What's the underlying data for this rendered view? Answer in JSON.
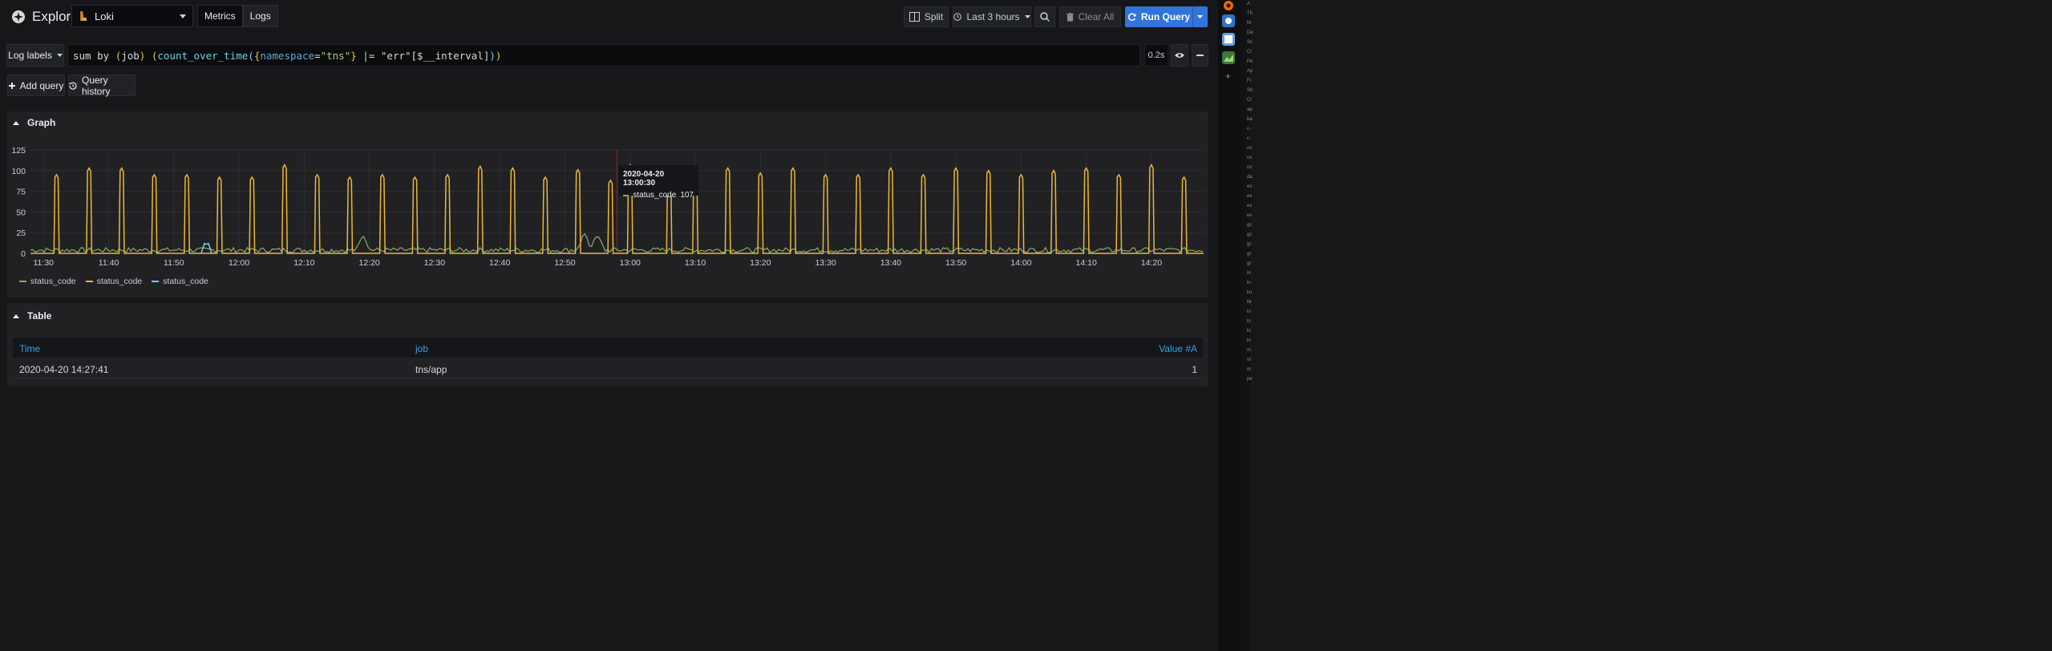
{
  "header": {
    "title": "Explore",
    "datasource": "Loki",
    "modes": [
      "Metrics",
      "Logs"
    ],
    "split_label": "Split",
    "time_range": "Last 3 hours",
    "clear_all_label": "Clear All",
    "run_query_label": "Run Query"
  },
  "query": {
    "log_labels_label": "Log labels",
    "expression_parts": [
      "sum by ",
      "(",
      "job",
      ") ",
      "(",
      "count_over_time",
      "(",
      "{",
      "namespace",
      "=",
      "\"tns\"",
      "}",
      " |= ",
      "\"err\"",
      "[$__interval]",
      ")",
      ")"
    ],
    "duration": "0.2s"
  },
  "actions": {
    "add_query_label": "Add query",
    "query_history_label": "Query history"
  },
  "graph": {
    "title": "Graph",
    "tooltip_time": "2020-04-20 13:00:30",
    "tooltip_series": "status_code",
    "tooltip_value": "107",
    "legend": [
      {
        "name": "status_code",
        "color": "#7eb26d"
      },
      {
        "name": "status_code",
        "color": "#eab839"
      },
      {
        "name": "status_code",
        "color": "#6ed0e0"
      }
    ]
  },
  "chart_data": {
    "type": "line",
    "title": "",
    "xlabel": "",
    "ylabel": "",
    "ylim": [
      0,
      125
    ],
    "yticks": [
      0,
      25,
      50,
      75,
      100,
      125
    ],
    "xticks": [
      "11:30",
      "11:40",
      "11:50",
      "12:00",
      "12:10",
      "12:20",
      "12:30",
      "12:40",
      "12:50",
      "13:00",
      "13:10",
      "13:20",
      "13:30",
      "13:40",
      "13:50",
      "14:00",
      "14:10",
      "14:20"
    ],
    "x_range": [
      "11:28",
      "14:28"
    ],
    "grid": true,
    "legend_position": "bottom-left",
    "series": [
      {
        "name": "status_code",
        "color": "#eab839",
        "peaks": [
          {
            "t": "11:32",
            "v": 95
          },
          {
            "t": "11:37",
            "v": 103
          },
          {
            "t": "11:42",
            "v": 103
          },
          {
            "t": "11:47",
            "v": 95
          },
          {
            "t": "11:52",
            "v": 95
          },
          {
            "t": "11:57",
            "v": 92
          },
          {
            "t": "12:02",
            "v": 92
          },
          {
            "t": "12:07",
            "v": 107
          },
          {
            "t": "12:12",
            "v": 95
          },
          {
            "t": "12:17",
            "v": 92
          },
          {
            "t": "12:22",
            "v": 95
          },
          {
            "t": "12:27",
            "v": 92
          },
          {
            "t": "12:32",
            "v": 95
          },
          {
            "t": "12:37",
            "v": 105
          },
          {
            "t": "12:42",
            "v": 103
          },
          {
            "t": "12:47",
            "v": 92
          },
          {
            "t": "12:52",
            "v": 101
          },
          {
            "t": "12:57",
            "v": 88
          },
          {
            "t": "13:00",
            "v": 107
          },
          {
            "t": "13:06",
            "v": 103
          },
          {
            "t": "13:10",
            "v": 97
          },
          {
            "t": "13:15",
            "v": 103
          },
          {
            "t": "13:20",
            "v": 97
          },
          {
            "t": "13:25",
            "v": 103
          },
          {
            "t": "13:30",
            "v": 95
          },
          {
            "t": "13:35",
            "v": 95
          },
          {
            "t": "13:40",
            "v": 103
          },
          {
            "t": "13:45",
            "v": 95
          },
          {
            "t": "13:50",
            "v": 103
          },
          {
            "t": "13:55",
            "v": 100
          },
          {
            "t": "14:00",
            "v": 95
          },
          {
            "t": "14:05",
            "v": 100
          },
          {
            "t": "14:10",
            "v": 103
          },
          {
            "t": "14:15",
            "v": 95
          },
          {
            "t": "14:20",
            "v": 107
          },
          {
            "t": "14:25",
            "v": 92
          }
        ]
      },
      {
        "name": "status_code",
        "color": "#7eb26d",
        "baseline": 4,
        "bursts": [
          {
            "t": "12:19",
            "v": 22
          },
          {
            "t": "12:53",
            "v": 23
          },
          {
            "t": "12:55",
            "v": 22
          }
        ]
      },
      {
        "name": "status_code",
        "color": "#6ed0e0",
        "bursts": [
          {
            "t": "11:55",
            "v": 12
          }
        ]
      }
    ]
  },
  "table": {
    "title": "Table",
    "columns": [
      "Time",
      "job",
      "Value #A"
    ],
    "rows": [
      [
        "2020-04-20 14:27:41",
        "tns/app",
        "1"
      ]
    ]
  },
  "sidebar_right": {
    "items": [
      "A",
      "Th",
      "M",
      "De",
      "Sc",
      "Cl",
      "Pe",
      "Ap",
      "Fi",
      "Sh",
      "Cl",
      "ap",
      "ba",
      "c-",
      "c-",
      "co",
      "co",
      "co",
      "da",
      "ev",
      "ev",
      "ev",
      "ev",
      "gc",
      "gc",
      "gr",
      "gr",
      "gr",
      "hi",
      "in",
      "ku",
      "lik",
      "lo",
      "lo",
      "lo",
      "lo",
      "m",
      "or",
      "or",
      "pe"
    ]
  }
}
